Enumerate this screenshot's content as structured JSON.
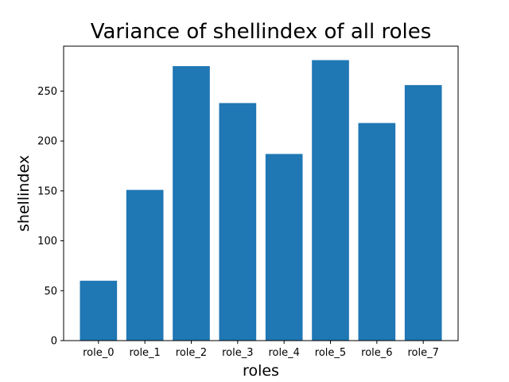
{
  "chart_data": {
    "type": "bar",
    "title": "Variance of shellindex of all roles",
    "xlabel": "roles",
    "ylabel": "shellindex",
    "categories": [
      "role_0",
      "role_1",
      "role_2",
      "role_3",
      "role_4",
      "role_5",
      "role_6",
      "role_7"
    ],
    "values": [
      60,
      151,
      275,
      238,
      187,
      281,
      218,
      256
    ],
    "ylim": [
      0,
      295
    ],
    "yticks": [
      0,
      50,
      100,
      150,
      200,
      250
    ],
    "grid": false,
    "bar_color": "#1f77b4"
  }
}
